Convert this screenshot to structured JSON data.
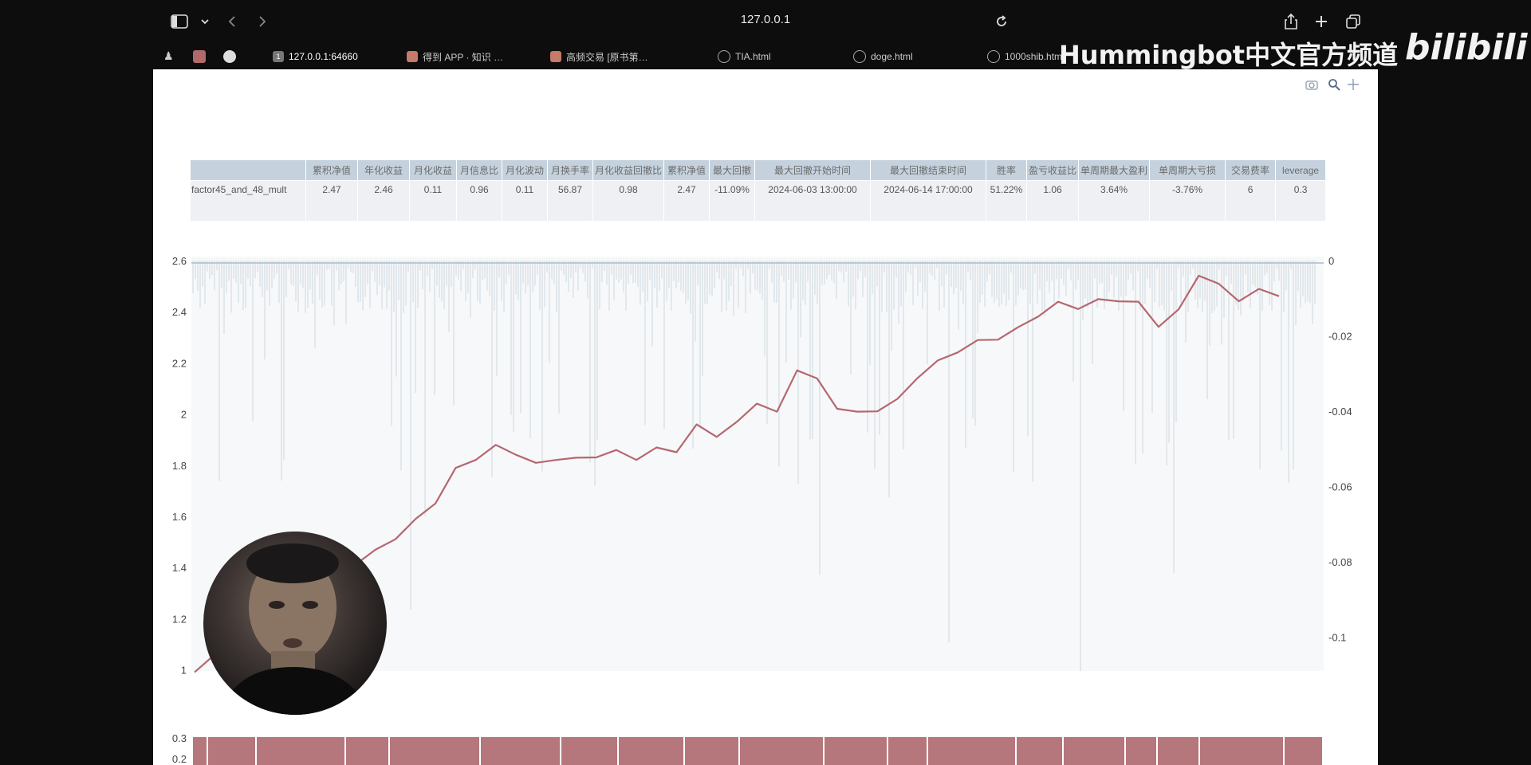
{
  "browser": {
    "url": "127.0.0.1",
    "tabs": [
      {
        "label": "127.0.0.1:64660",
        "active": true
      },
      {
        "label": "得到 APP · 知识 …",
        "active": false
      },
      {
        "label": "高频交易 [原书第…",
        "active": false
      },
      {
        "label": "TIA.html",
        "active": false
      },
      {
        "label": "doge.html",
        "active": false
      },
      {
        "label": "1000shib.html",
        "active": false
      }
    ],
    "icons": [
      "sidebar-icon",
      "chevron-down-icon",
      "back-icon",
      "forward-icon",
      "reload-icon",
      "share-icon",
      "new-tab-icon",
      "tabs-overview-icon"
    ]
  },
  "watermark": {
    "channel": "Hummingbot中文官方频道",
    "logo": "bilibili"
  },
  "stats_table": {
    "headers": [
      "",
      "累积净值",
      "年化收益",
      "月化收益",
      "月信息比",
      "月化波动",
      "月换手率",
      "月化收益回撤比",
      "累积净值",
      "最大回撤",
      "最大回撤开始时间",
      "最大回撤结束时间",
      "胜率",
      "盈亏收益比",
      "单周期最大盈利",
      "单周期大亏损",
      "交易费率",
      "leverage"
    ],
    "rows": [
      [
        "factor45_and_48_mult",
        "2.47",
        "2.46",
        "0.11",
        "0.96",
        "0.11",
        "56.87",
        "0.98",
        "2.47",
        "-11.09%",
        "2024-06-03 13:00:00",
        "2024-06-14 17:00:00",
        "51.22%",
        "1.06",
        "3.64%",
        "-3.76%",
        "6",
        "0.3"
      ]
    ]
  },
  "chart_data": {
    "type": "line",
    "left_axis": {
      "ticks": [
        "1",
        "1.2",
        "1.4",
        "1.6",
        "1.8",
        "2",
        "2.2",
        "2.4",
        "2.6"
      ],
      "range": [
        0.98,
        2.6
      ]
    },
    "right_axis": {
      "ticks": [
        "0",
        "-0.02",
        "-0.04",
        "-0.06",
        "-0.08",
        "-0.1"
      ],
      "range": [
        -0.11,
        0
      ]
    },
    "lower_axis": {
      "ticks": [
        "0.3",
        "0.2"
      ]
    },
    "series": [
      {
        "role": "equity",
        "color": "#b5676f",
        "points": [
          [
            0,
            1.0
          ],
          [
            2,
            1.05
          ],
          [
            4,
            1.1
          ],
          [
            6,
            1.13
          ],
          [
            8,
            1.15
          ],
          [
            10,
            1.2
          ],
          [
            12,
            1.24
          ],
          [
            14,
            1.33
          ],
          [
            16,
            1.42
          ],
          [
            18,
            1.46
          ],
          [
            20,
            1.52
          ],
          [
            22,
            1.58
          ],
          [
            24,
            1.66
          ],
          [
            26,
            1.78
          ],
          [
            28,
            1.83
          ],
          [
            30,
            1.87
          ],
          [
            32,
            1.85
          ],
          [
            34,
            1.8
          ],
          [
            36,
            1.83
          ],
          [
            38,
            1.82
          ],
          [
            40,
            1.84
          ],
          [
            42,
            1.85
          ],
          [
            44,
            1.83
          ],
          [
            46,
            1.86
          ],
          [
            48,
            1.86
          ],
          [
            50,
            1.95
          ],
          [
            52,
            1.92
          ],
          [
            54,
            1.96
          ],
          [
            56,
            2.05
          ],
          [
            58,
            2.0
          ],
          [
            60,
            2.18
          ],
          [
            62,
            2.13
          ],
          [
            64,
            2.03
          ],
          [
            66,
            2.0
          ],
          [
            68,
            2.02
          ],
          [
            70,
            2.05
          ],
          [
            72,
            2.15
          ],
          [
            74,
            2.2
          ],
          [
            76,
            2.25
          ],
          [
            78,
            2.28
          ],
          [
            80,
            2.3
          ],
          [
            82,
            2.33
          ],
          [
            84,
            2.39
          ],
          [
            86,
            2.43
          ],
          [
            88,
            2.42
          ],
          [
            90,
            2.44
          ],
          [
            92,
            2.45
          ],
          [
            94,
            2.43
          ],
          [
            96,
            2.35
          ],
          [
            98,
            2.4
          ],
          [
            100,
            2.55
          ],
          [
            102,
            2.5
          ],
          [
            104,
            2.45
          ],
          [
            106,
            2.48
          ],
          [
            108,
            2.47
          ]
        ]
      },
      {
        "role": "drawdown",
        "color": "#aebfca"
      }
    ],
    "leverage_bars": {
      "color": "#b5767c",
      "value": 0.3
    }
  }
}
